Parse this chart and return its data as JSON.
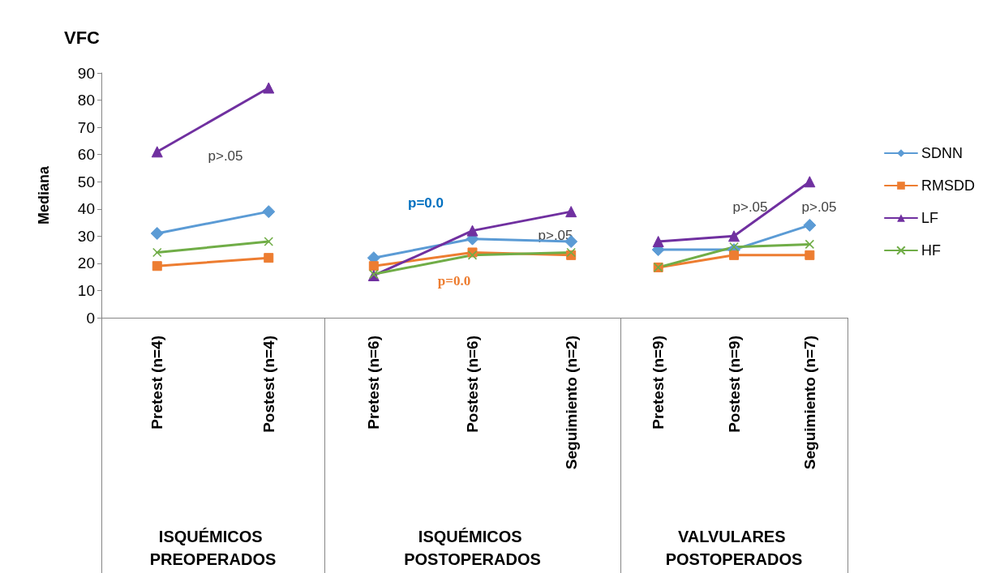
{
  "chart_data": [
    {
      "type": "line",
      "title": "VFC",
      "ylabel": "Mediana",
      "xlabel": "ISQUÉMICOS PREOPERADOS",
      "categories": [
        "Pretest (n=4)",
        "Postest (n=4)"
      ],
      "series": [
        {
          "color": "#5b9bd5",
          "marker": "diamond",
          "values": [
            31,
            39
          ]
        },
        {
          "color": "#ed7d31",
          "marker": "square",
          "values": [
            19,
            22
          ]
        },
        {
          "color": "#7030a0",
          "marker": "triangle",
          "values": [
            61,
            84.5
          ]
        },
        {
          "color": "#70ad47",
          "marker": "cross",
          "values": [
            24,
            28
          ]
        }
      ],
      "ylim": [
        0,
        90
      ],
      "yticks": [
        0,
        10,
        20,
        30,
        40,
        50,
        60,
        70,
        80,
        90
      ],
      "line_style": "solid",
      "annotations": [
        "p>.05"
      ]
    },
    {
      "type": "line",
      "xlabel": "ISQUÉMICOS POSTOPERADOS",
      "categories": [
        "Pretest (n=6)",
        "Postest (n=6)",
        "Seguimiento (n=2)"
      ],
      "series": [
        {
          "color": "#5b9bd5",
          "marker": "diamond",
          "values": [
            22,
            29,
            28
          ]
        },
        {
          "color": "#ed7d31",
          "marker": "square",
          "values": [
            19,
            24,
            23
          ]
        },
        {
          "color": "#7030a0",
          "marker": "triangle",
          "values": [
            15.5,
            32,
            39
          ]
        },
        {
          "color": "#70ad47",
          "marker": "cross",
          "values": [
            16,
            23,
            24
          ]
        }
      ],
      "ylim": [
        0,
        90
      ],
      "yticks": [
        0,
        10,
        20,
        30,
        40,
        50,
        60,
        70,
        80,
        90
      ],
      "tick_labels": "x",
      "line_style": "solid",
      "annotations": [
        "p=0.0",
        "p=0.0",
        "p>.05"
      ]
    },
    {
      "type": "line",
      "xlabel": "VALVULARES POSTOPERADOS",
      "categories": [
        "Pretest (n=9)",
        "Postest (n=9)",
        "Seguimiento (n=7)"
      ],
      "series": [
        {
          "name": "SDNN",
          "color": "#5b9bd5",
          "marker": "diamond",
          "values": [
            25,
            25,
            34
          ]
        },
        {
          "name": "RMSDD",
          "color": "#ed7d31",
          "marker": "square",
          "values": [
            18.5,
            23,
            23
          ]
        },
        {
          "name": "LF",
          "color": "#7030a0",
          "marker": "triangle",
          "values": [
            28,
            30,
            50
          ]
        },
        {
          "name": "HF",
          "color": "#70ad47",
          "marker": "cross",
          "values": [
            18.5,
            26,
            27
          ]
        }
      ],
      "ylim": [
        0,
        90
      ],
      "yticks": [
        0,
        10,
        20,
        30,
        40,
        50,
        60,
        70,
        80,
        90
      ],
      "tick_labels": "x",
      "legend": "right",
      "line_style": "solid",
      "annotations": [
        "p>.05",
        "p>.05"
      ]
    }
  ]
}
